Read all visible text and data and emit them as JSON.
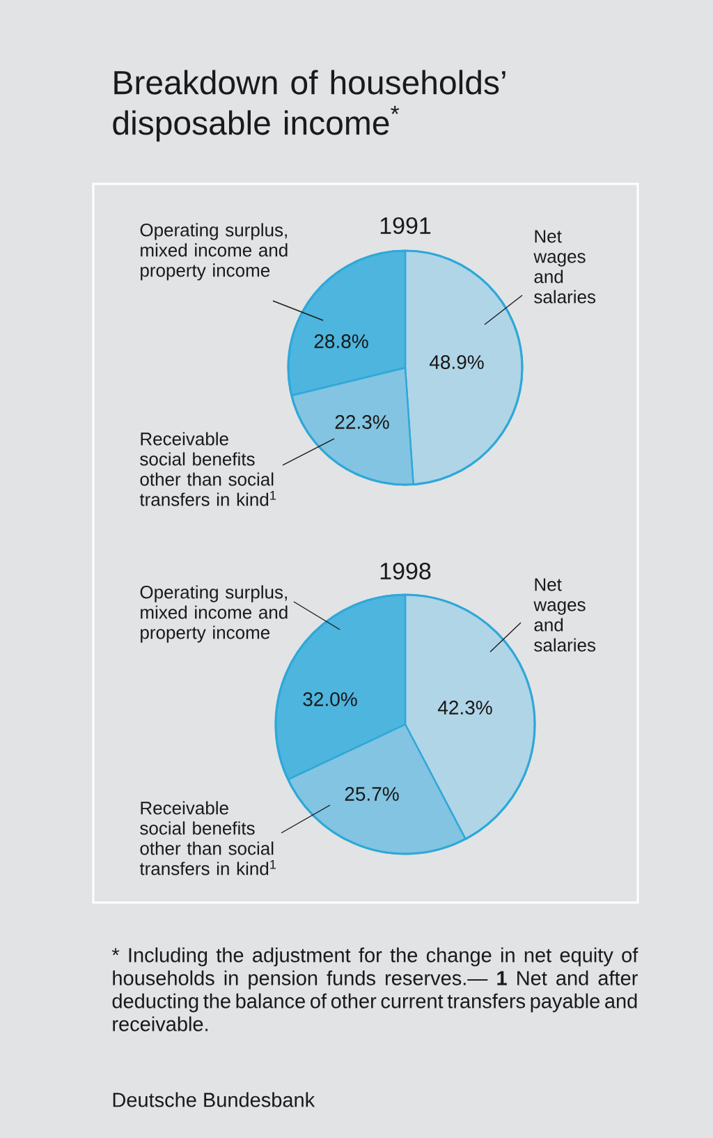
{
  "chart_data": [
    {
      "type": "pie",
      "title": "Breakdown of households’ disposable income$^{*}$",
      "subtitle": "1991",
      "categories": [
        "Net wages and salaries",
        "Receivable social benefits other than social transfers in kind$^{1}$",
        "Operating surplus, mixed income and property income"
      ],
      "values": [
        48.9,
        22.3,
        28.8
      ],
      "value_labels": [
        "48.9%",
        "22.3%",
        "28.8%"
      ],
      "colors": [
        "#b0d5e7",
        "#82c4e1",
        "#4db5de"
      ]
    },
    {
      "type": "pie",
      "title": "1998",
      "categories": [
        "Net wages and salaries",
        "Receivable social benefits other than social transfers in kind$^{1}$",
        "Operating surplus, mixed income and property income"
      ],
      "values": [
        42.3,
        25.7,
        32.0
      ],
      "value_labels": [
        "42.3%",
        "25.7%",
        "32.0%"
      ],
      "colors": [
        "#b0d5e7",
        "#82c4e1",
        "#4db5de"
      ],
      "annotations": [
        "* Including the adjustment for the change in net equity of households in pension funds reserves.— **1** Net and after deducting the balance of other current transfers payable and receivable.",
        "Deutsche Bundesbank"
      ]
    }
  ]
}
